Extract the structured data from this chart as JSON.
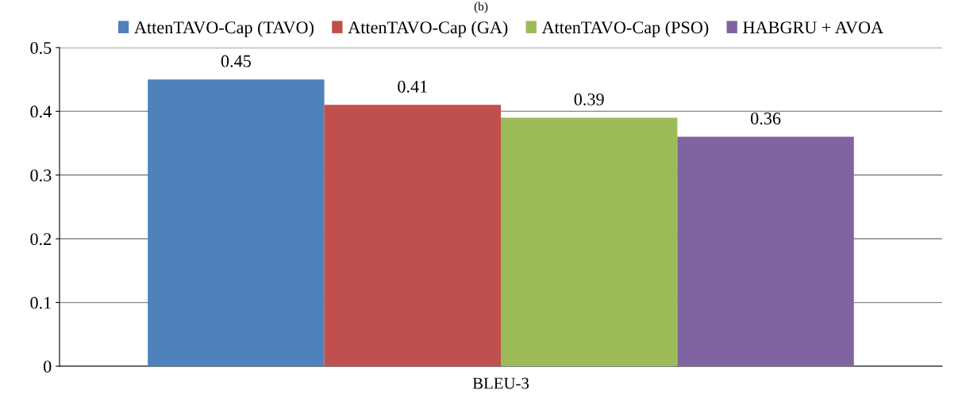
{
  "chart_data": {
    "type": "bar",
    "title": "(b)",
    "categories": [
      "BLEU-3"
    ],
    "series": [
      {
        "name": "AttenTAVO-Cap (TAVO)",
        "color": "#4f81bd",
        "values": [
          0.45
        ]
      },
      {
        "name": "AttenTAVO-Cap (GA)",
        "color": "#c0504d",
        "values": [
          0.41
        ]
      },
      {
        "name": "AttenTAVO-Cap (PSO)",
        "color": "#9bbb59",
        "values": [
          0.39
        ]
      },
      {
        "name": "HABGRU + AVOA",
        "color": "#8064a2",
        "values": [
          0.36
        ]
      }
    ],
    "ylim": [
      0,
      0.5
    ],
    "yticks": [
      0,
      0.1,
      0.2,
      0.3,
      0.4,
      0.5
    ],
    "grid": "y",
    "legend": "top",
    "data_labels": true
  }
}
